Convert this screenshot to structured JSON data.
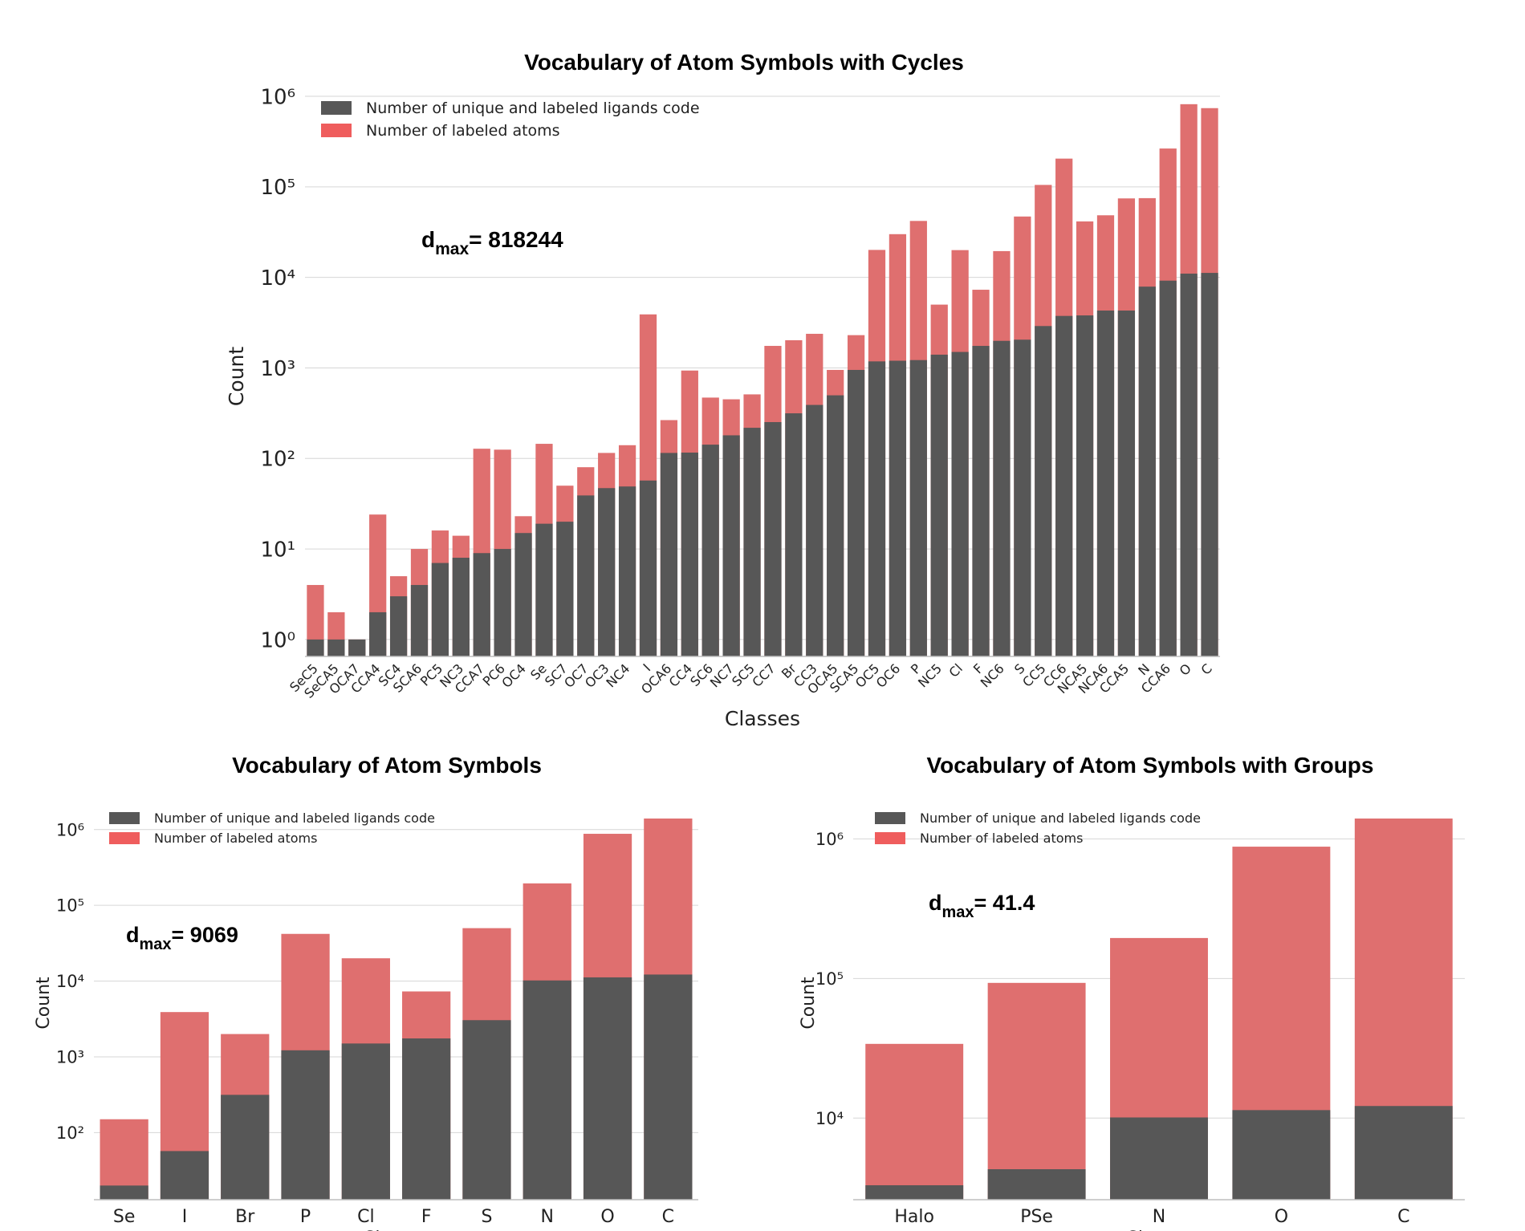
{
  "chart_data": [
    {
      "type": "bar",
      "stacked": true,
      "yscale": "log",
      "title": "Vocabulary of Atom Symbols with Cycles",
      "xlabel": "Classes",
      "ylabel": "Count",
      "ylim": [
        0.65,
        1000000
      ],
      "yticks": [
        1,
        10,
        100,
        1000,
        10000,
        100000,
        1000000
      ],
      "legend_position": "top-left",
      "annotation": {
        "main": "d",
        "sub": "max",
        "value": "= 818244"
      },
      "series": [
        {
          "name": "Number of unique and labeled ligands code",
          "color": "#575757"
        },
        {
          "name": "Number of labeled atoms",
          "color": "#df6f6f"
        }
      ],
      "categories": [
        "SeC5",
        "SeCA5",
        "OCA7",
        "CCA4",
        "SC4",
        "SCA6",
        "PC5",
        "NC3",
        "CCA7",
        "PC6",
        "OC4",
        "Se",
        "SC7",
        "OC7",
        "OC3",
        "NC4",
        "I",
        "OCA6",
        "CC4",
        "SC6",
        "NC7",
        "SC5",
        "CC7",
        "Br",
        "CC3",
        "OCA5",
        "SCA5",
        "OC5",
        "OC6",
        "P",
        "NC5",
        "Cl",
        "F",
        "NC6",
        "S",
        "CC5",
        "CC6",
        "NCA5",
        "NCA6",
        "CCA5",
        "N",
        "CCA6",
        "O",
        "C"
      ],
      "unique": [
        1,
        1,
        1,
        2,
        3,
        4,
        7,
        8,
        9,
        10,
        15,
        19,
        20,
        39,
        47,
        49,
        57,
        115,
        116,
        142,
        180,
        218,
        252,
        315,
        390,
        498,
        950,
        1180,
        1200,
        1220,
        1400,
        1500,
        1750,
        1990,
        2050,
        2900,
        3750,
        3800,
        4300,
        4300,
        7900,
        9200,
        11000,
        11200
      ],
      "labeled": [
        4,
        2,
        1,
        24,
        5,
        10,
        16,
        14,
        128,
        125,
        23,
        145,
        50,
        80,
        115,
        140,
        3900,
        265,
        935,
        470,
        450,
        510,
        1750,
        2020,
        2380,
        950,
        2300,
        20100,
        30000,
        42000,
        5000,
        20000,
        7300,
        19500,
        47000,
        105000,
        205000,
        41500,
        48500,
        74500,
        75000,
        265000,
        818000,
        740000
      ]
    },
    {
      "type": "bar",
      "stacked": true,
      "yscale": "log",
      "title": "Vocabulary of Atom Symbols",
      "xlabel": "Classes",
      "ylabel": "Count",
      "ylim": [
        13,
        1400000
      ],
      "yticks": [
        100,
        1000,
        10000,
        100000,
        1000000
      ],
      "legend_position": "top-left",
      "annotation": {
        "main": "d",
        "sub": "max",
        "value": "= 9069"
      },
      "series": [
        {
          "name": "Number of unique and labeled ligands code",
          "color": "#575757"
        },
        {
          "name": "Number of labeled atoms",
          "color": "#df6f6f"
        }
      ],
      "categories": [
        "Se",
        "I",
        "Br",
        "P",
        "Cl",
        "F",
        "S",
        "N",
        "O",
        "C"
      ],
      "unique": [
        20,
        57,
        315,
        1220,
        1500,
        1750,
        3050,
        10200,
        11200,
        12200
      ],
      "labeled": [
        150,
        3900,
        2000,
        42000,
        20000,
        7300,
        50000,
        195000,
        880000,
        1400000
      ]
    },
    {
      "type": "bar",
      "stacked": true,
      "yscale": "log",
      "title": "Vocabulary of Atom Symbols with Groups",
      "xlabel": "Classes",
      "ylabel": "Count",
      "ylim": [
        2600,
        1400000
      ],
      "yticks": [
        10000,
        100000,
        1000000
      ],
      "legend_position": "top-left",
      "annotation": {
        "main": "d",
        "sub": "max",
        "value": "= 41.4"
      },
      "series": [
        {
          "name": "Number of unique and labeled ligands code",
          "color": "#575757"
        },
        {
          "name": "Number of labeled atoms",
          "color": "#df6f6f"
        }
      ],
      "categories": [
        "Halo",
        "PSe",
        "N",
        "O",
        "C"
      ],
      "unique": [
        3300,
        4300,
        10100,
        11400,
        12200
      ],
      "labeled": [
        34000,
        93000,
        195000,
        880000,
        1400000
      ]
    }
  ]
}
